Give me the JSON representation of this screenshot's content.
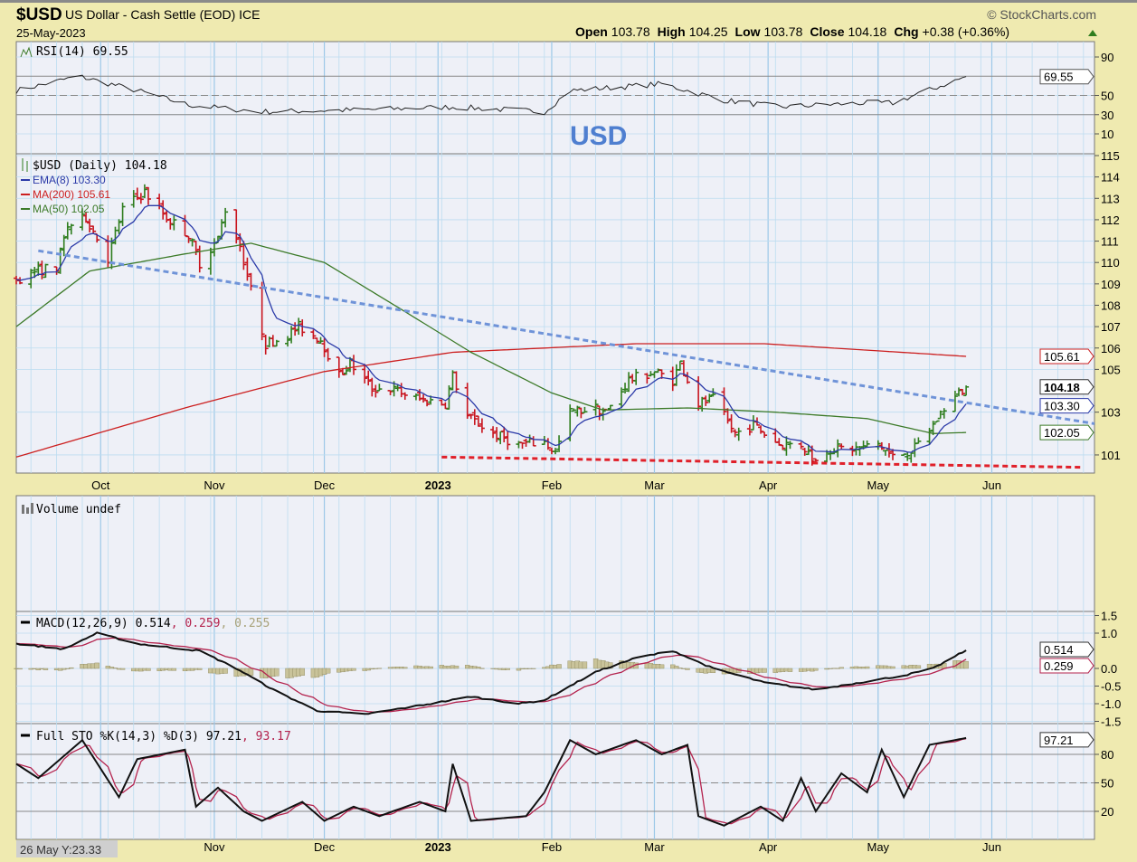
{
  "header": {
    "symbol": "$USD",
    "name": "US Dollar - Cash Settle (EOD) ICE",
    "date": "25-May-2023",
    "copyright": "© StockCharts.com",
    "open_label": "Open",
    "open": "103.78",
    "high_label": "High",
    "high": "104.25",
    "low_label": "Low",
    "low": "103.78",
    "close_label": "Close",
    "close": "104.18",
    "chg_label": "Chg",
    "chg": "+0.38 (+0.36%)",
    "up_color": "#2e7d1e"
  },
  "annotation": "USD",
  "cursor_readout": "26 May Y:23.33",
  "colors": {
    "background": "#efeab0",
    "plot": "#eef0f7",
    "grid": "#bcdcf0",
    "up": "#2e7d1e",
    "down": "#c8141e",
    "ema8": "#2b3aa8",
    "ma200": "#cc1f1f",
    "ma50": "#3c7a28",
    "trendline": "#6f93d8",
    "support": "#e0202a",
    "macd_signal": "#b4234e",
    "histogram": "#c9c39a"
  },
  "panels": {
    "rsi": {
      "legend": "RSI(14) 69.55",
      "ticks": [
        "90",
        "50",
        "30",
        "10"
      ],
      "current": "69.55"
    },
    "price": {
      "legend": "$USD (Daily) 104.18",
      "ema_legend": "EMA(8) 103.30",
      "ma200_legend": "MA(200) 105.61",
      "ma50_legend": "MA(50) 102.05",
      "ticks": [
        "115",
        "114",
        "113",
        "112",
        "111",
        "110",
        "109",
        "108",
        "107",
        "106",
        "105",
        "103",
        "101"
      ],
      "labels": {
        "ma200": "105.61",
        "close": "104.18",
        "ema": "103.30",
        "ma50": "102.05"
      }
    },
    "volume": {
      "legend": "Volume undef"
    },
    "macd": {
      "legend_main": "MACD(12,26,9) 0.514",
      "legend_signal": ", 0.259",
      "legend_hist": ", 0.255",
      "ticks": [
        "1.5",
        "1.0",
        "0.0",
        "-0.5",
        "-1.0",
        "-1.5"
      ],
      "labels": {
        "macd": "0.514",
        "signal": "0.259"
      }
    },
    "sto": {
      "legend_main": "Full STO %K(14,3) %D(3) 97.21",
      "legend_d": ", 93.17",
      "ticks": [
        "80",
        "50",
        "20"
      ],
      "labels": {
        "k": "97.21"
      }
    }
  },
  "months": [
    {
      "label": "Oct",
      "date": "2022-10-01"
    },
    {
      "label": "Nov",
      "date": "2022-11-01"
    },
    {
      "label": "Dec",
      "date": "2022-12-01"
    },
    {
      "label": "2023",
      "date": "2023-01-01"
    },
    {
      "label": "Feb",
      "date": "2023-02-01"
    },
    {
      "label": "Mar",
      "date": "2023-03-01"
    },
    {
      "label": "Apr",
      "date": "2023-04-01"
    },
    {
      "label": "May",
      "date": "2023-05-01"
    },
    {
      "label": "Jun",
      "date": "2023-06-01"
    }
  ],
  "chart_data": [
    {
      "type": "ohlc",
      "title": "$USD (Daily)",
      "xlim": [
        "2022-09-08",
        "2023-06-29"
      ],
      "ylim": [
        100.2,
        115.1
      ],
      "grid": true,
      "last_bar": {
        "date": "2023-05-25",
        "open": 103.78,
        "high": 104.25,
        "low": 103.78,
        "close": 104.18
      },
      "close_path": [
        [
          "2022-09-08",
          109.2
        ],
        [
          "2022-09-13",
          109.6
        ],
        [
          "2022-09-19",
          109.8
        ],
        [
          "2022-09-22",
          111.7
        ],
        [
          "2022-09-27",
          112.1
        ],
        [
          "2022-10-03",
          110.2
        ],
        [
          "2022-10-07",
          112.5
        ],
        [
          "2022-10-13",
          113.3
        ],
        [
          "2022-10-19",
          112.1
        ],
        [
          "2022-10-25",
          111.3
        ],
        [
          "2022-10-28",
          110.0
        ],
        [
          "2022-11-02",
          111.1
        ],
        [
          "2022-11-04",
          112.5
        ],
        [
          "2022-11-08",
          110.8
        ],
        [
          "2022-11-11",
          108.7
        ],
        [
          "2022-11-15",
          106.2
        ],
        [
          "2022-11-21",
          106.6
        ],
        [
          "2022-11-24",
          107.0
        ],
        [
          "2022-11-30",
          106.4
        ],
        [
          "2022-12-05",
          104.7
        ],
        [
          "2022-12-08",
          105.3
        ],
        [
          "2022-12-14",
          104.1
        ],
        [
          "2022-12-19",
          104.1
        ],
        [
          "2022-12-27",
          103.6
        ],
        [
          "2023-01-03",
          103.4
        ],
        [
          "2023-01-05",
          104.7
        ],
        [
          "2023-01-09",
          102.8
        ],
        [
          "2023-01-16",
          102.0
        ],
        [
          "2023-01-23",
          101.5
        ],
        [
          "2023-01-30",
          101.6
        ],
        [
          "2023-02-02",
          101.1
        ],
        [
          "2023-02-06",
          103.0
        ],
        [
          "2023-02-13",
          103.2
        ],
        [
          "2023-02-16",
          103.0
        ],
        [
          "2023-02-22",
          104.5
        ],
        [
          "2023-03-01",
          104.9
        ],
        [
          "2023-03-06",
          104.5
        ],
        [
          "2023-03-08",
          105.3
        ],
        [
          "2023-03-13",
          103.4
        ],
        [
          "2023-03-17",
          103.6
        ],
        [
          "2023-03-23",
          102.0
        ],
        [
          "2023-03-28",
          102.4
        ],
        [
          "2023-04-04",
          101.5
        ],
        [
          "2023-04-10",
          101.5
        ],
        [
          "2023-04-14",
          100.7
        ],
        [
          "2023-04-17",
          101.3
        ],
        [
          "2023-04-26",
          101.3
        ],
        [
          "2023-05-01",
          101.5
        ],
        [
          "2023-05-05",
          100.9
        ],
        [
          "2023-05-11",
          101.3
        ],
        [
          "2023-05-16",
          102.4
        ],
        [
          "2023-05-19",
          103.2
        ],
        [
          "2023-05-25",
          104.18
        ]
      ],
      "ma50": [
        [
          "2022-09-08",
          107.0
        ],
        [
          "2022-09-28",
          109.6
        ],
        [
          "2022-10-24",
          110.4
        ],
        [
          "2022-11-11",
          110.9
        ],
        [
          "2022-12-01",
          110.0
        ],
        [
          "2022-12-23",
          107.7
        ],
        [
          "2023-01-10",
          105.8
        ],
        [
          "2023-02-01",
          103.9
        ],
        [
          "2023-02-15",
          103.1
        ],
        [
          "2023-03-10",
          103.2
        ],
        [
          "2023-04-03",
          103.0
        ],
        [
          "2023-04-28",
          102.7
        ],
        [
          "2023-05-16",
          102.0
        ],
        [
          "2023-05-25",
          102.05
        ]
      ],
      "ma200": [
        [
          "2022-09-08",
          100.9
        ],
        [
          "2022-10-24",
          103.2
        ],
        [
          "2022-12-01",
          104.9
        ],
        [
          "2023-01-05",
          105.8
        ],
        [
          "2023-02-24",
          106.2
        ],
        [
          "2023-03-31",
          106.2
        ],
        [
          "2023-05-25",
          105.61
        ]
      ],
      "ema8_last": 103.3,
      "trendline": [
        [
          "2022-09-14",
          110.55
        ],
        [
          "2023-06-29",
          102.46
        ]
      ],
      "support_line": [
        [
          "2023-01-02",
          100.9
        ],
        [
          "2023-06-26",
          100.42
        ]
      ]
    },
    {
      "type": "line",
      "title": "RSI(14)",
      "ylim": [
        0,
        100
      ],
      "reference_lines": [
        70,
        50,
        30
      ],
      "values": [
        [
          "2022-09-08",
          55
        ],
        [
          "2022-09-25",
          70
        ],
        [
          "2022-10-11",
          55
        ],
        [
          "2022-10-25",
          40
        ],
        [
          "2022-11-14",
          33
        ],
        [
          "2022-12-12",
          35
        ],
        [
          "2023-01-05",
          38
        ],
        [
          "2023-01-30",
          33
        ],
        [
          "2023-02-06",
          55
        ],
        [
          "2023-02-24",
          60
        ],
        [
          "2023-03-03",
          62
        ],
        [
          "2023-03-20",
          45
        ],
        [
          "2023-04-04",
          38
        ],
        [
          "2023-04-26",
          42
        ],
        [
          "2023-05-05",
          42
        ],
        [
          "2023-05-16",
          57
        ],
        [
          "2023-05-25",
          69.55
        ]
      ]
    },
    {
      "type": "line",
      "title": "MACD(12,26,9)",
      "ylim": [
        -1.6,
        1.7
      ],
      "last": {
        "macd": 0.514,
        "signal": 0.259,
        "histogram": 0.255
      },
      "macd": [
        [
          "2022-09-08",
          0.7
        ],
        [
          "2022-09-21",
          0.55
        ],
        [
          "2022-09-30",
          1.0
        ],
        [
          "2022-10-11",
          0.7
        ],
        [
          "2022-10-28",
          0.5
        ],
        [
          "2022-11-07",
          0.0
        ],
        [
          "2022-11-17",
          -0.6
        ],
        [
          "2022-11-29",
          -1.2
        ],
        [
          "2022-12-12",
          -1.3
        ],
        [
          "2022-12-30",
          -1.0
        ],
        [
          "2023-01-10",
          -0.8
        ],
        [
          "2023-01-23",
          -1.0
        ],
        [
          "2023-01-30",
          -0.9
        ],
        [
          "2023-02-13",
          -0.1
        ],
        [
          "2023-02-24",
          0.3
        ],
        [
          "2023-03-06",
          0.5
        ],
        [
          "2023-03-17",
          0.0
        ],
        [
          "2023-03-31",
          -0.4
        ],
        [
          "2023-04-14",
          -0.6
        ],
        [
          "2023-04-26",
          -0.4
        ],
        [
          "2023-05-08",
          -0.2
        ],
        [
          "2023-05-16",
          0.0
        ],
        [
          "2023-05-25",
          0.514
        ]
      ]
    },
    {
      "type": "line",
      "title": "Full STO %K(14,3) %D(3)",
      "ylim": [
        0,
        105
      ],
      "reference_lines": [
        80,
        50,
        20
      ],
      "last": {
        "k": 97.21,
        "d": 93.17
      },
      "k": [
        [
          "2022-09-08",
          70
        ],
        [
          "2022-09-14",
          55
        ],
        [
          "2022-09-26",
          95
        ],
        [
          "2022-10-06",
          35
        ],
        [
          "2022-10-11",
          75
        ],
        [
          "2022-10-24",
          85
        ],
        [
          "2022-10-27",
          25
        ],
        [
          "2022-11-02",
          45
        ],
        [
          "2022-11-09",
          20
        ],
        [
          "2022-11-14",
          10
        ],
        [
          "2022-11-25",
          30
        ],
        [
          "2022-12-01",
          10
        ],
        [
          "2022-12-09",
          25
        ],
        [
          "2022-12-16",
          15
        ],
        [
          "2022-12-27",
          30
        ],
        [
          "2023-01-03",
          20
        ],
        [
          "2023-01-05",
          70
        ],
        [
          "2023-01-10",
          10
        ],
        [
          "2023-01-25",
          15
        ],
        [
          "2023-01-30",
          40
        ],
        [
          "2023-02-06",
          95
        ],
        [
          "2023-02-13",
          80
        ],
        [
          "2023-02-24",
          95
        ],
        [
          "2023-03-03",
          80
        ],
        [
          "2023-03-10",
          90
        ],
        [
          "2023-03-13",
          15
        ],
        [
          "2023-03-20",
          5
        ],
        [
          "2023-03-30",
          25
        ],
        [
          "2023-04-05",
          10
        ],
        [
          "2023-04-10",
          55
        ],
        [
          "2023-04-14",
          20
        ],
        [
          "2023-04-21",
          60
        ],
        [
          "2023-04-28",
          40
        ],
        [
          "2023-05-02",
          85
        ],
        [
          "2023-05-08",
          35
        ],
        [
          "2023-05-15",
          90
        ],
        [
          "2023-05-25",
          97.21
        ]
      ]
    }
  ]
}
